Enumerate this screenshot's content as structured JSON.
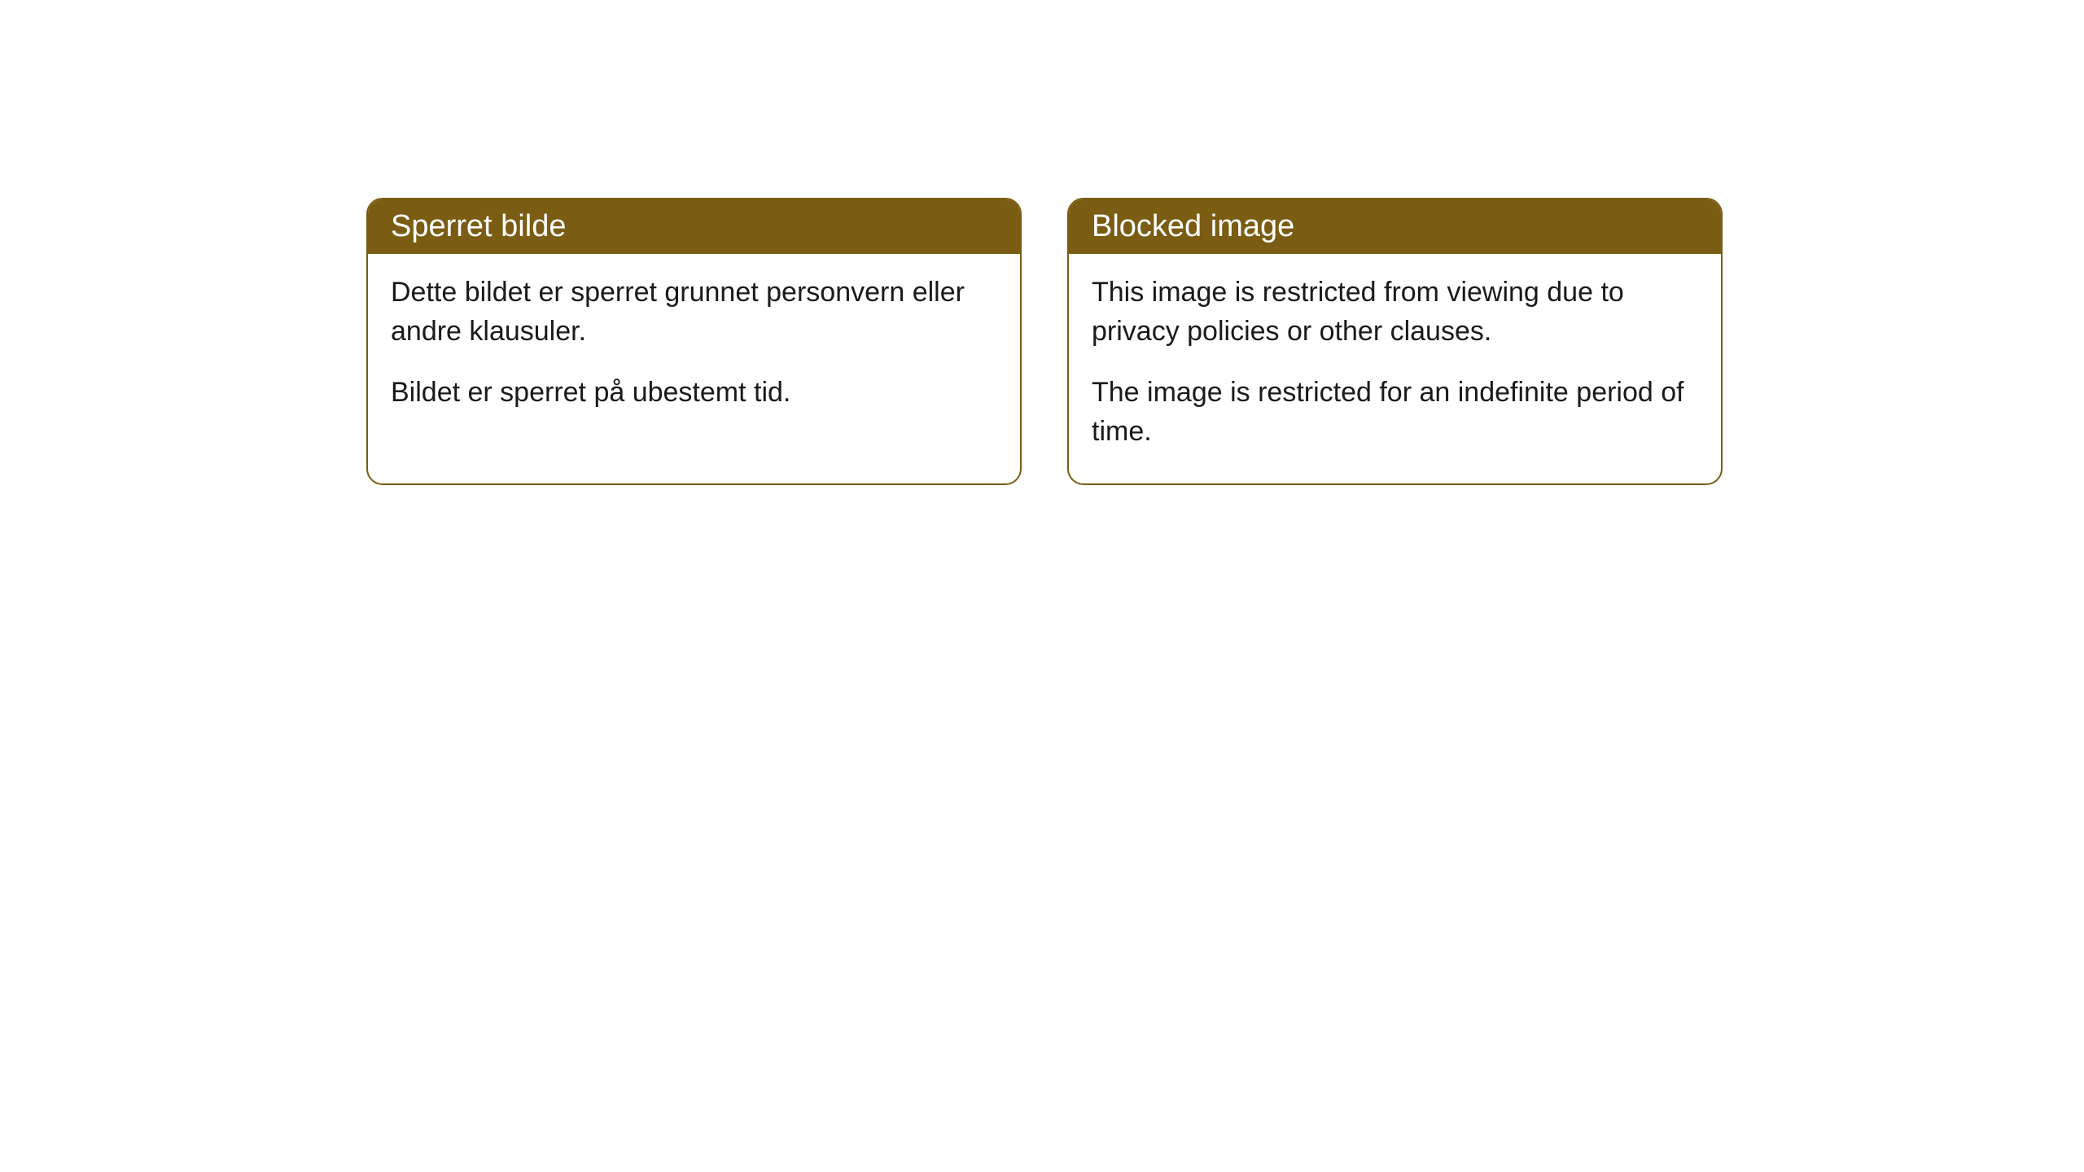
{
  "cards": {
    "norwegian": {
      "title": "Sperret bilde",
      "paragraph1": "Dette bildet er sperret grunnet personvern eller andre klausuler.",
      "paragraph2": "Bildet er sperret på ubestemt tid."
    },
    "english": {
      "title": "Blocked image",
      "paragraph1": "This image is restricted from viewing due to privacy policies or other clauses.",
      "paragraph2": "The image is restricted for an indefinite period of time."
    }
  },
  "style": {
    "header_bg_color": "#7a5c13",
    "header_text_color": "#ffffff",
    "border_color": "#7a5c13",
    "body_text_color": "#1a1a1a",
    "background_color": "#ffffff",
    "border_radius": "20px",
    "title_fontsize": 38,
    "body_fontsize": 34
  }
}
